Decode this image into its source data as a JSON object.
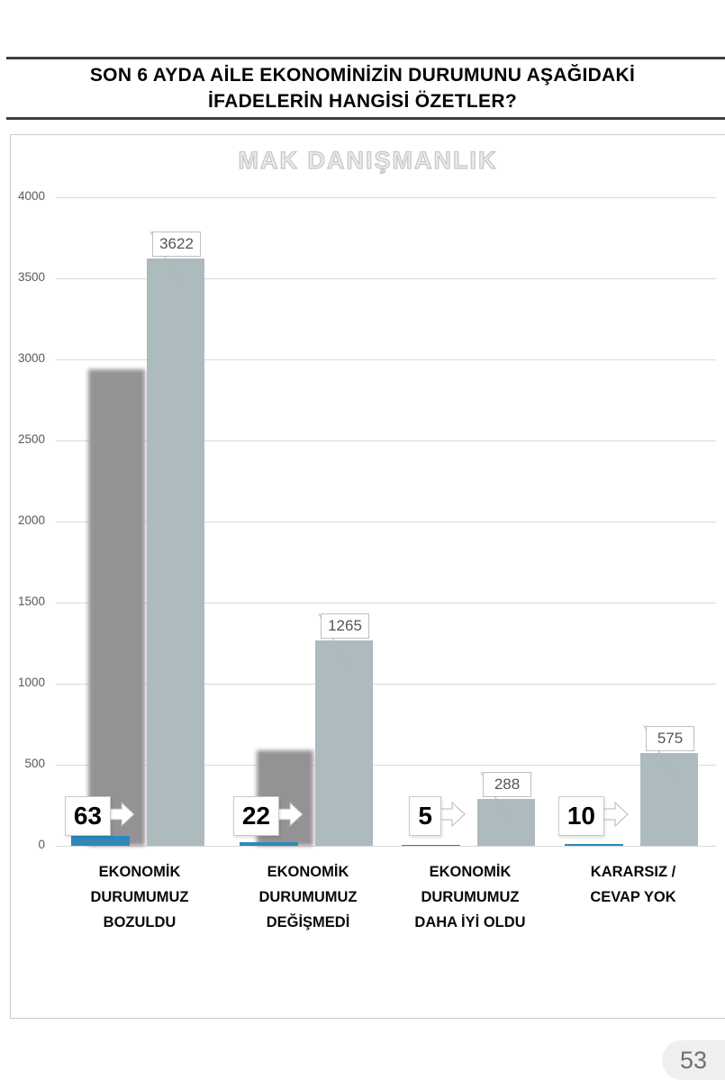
{
  "page": {
    "title_line1": "SON 6 AYDA AİLE EKONOMİNİZİN DURUMUNU AŞAĞIDAKİ",
    "title_line2": "İFADELERİN HANGİSİ ÖZETLER?",
    "page_number": "53"
  },
  "chart_data": {
    "type": "bar",
    "title": "MAK DANIŞMANLIK",
    "ylim": [
      0,
      4000
    ],
    "ytick_interval": 500,
    "grid": "horizontal",
    "legend": "none",
    "categories": [
      {
        "label": "EKONOMİK DURUMUMUZ BOZULDU",
        "lines": [
          "EKONOMİK",
          "DURUMUMUZ",
          "BOZULDU"
        ]
      },
      {
        "label": "EKONOMİK DURUMUMUZ DEĞİŞMEDİ",
        "lines": [
          "EKONOMİK",
          "DURUMUMUZ",
          "DEĞİŞMEDİ"
        ]
      },
      {
        "label": "EKONOMİK DURUMUMUZ DAHA İYİ OLDU",
        "lines": [
          "EKONOMİK",
          "DURUMUMUZ",
          "DAHA İYİ OLDU"
        ]
      },
      {
        "label": "KARARSIZ / CEVAP YOK",
        "lines": [
          "KARARSIZ /",
          "CEVAP YOK"
        ]
      }
    ],
    "series": [
      {
        "name": "unlabeled-gray",
        "color": "#959295",
        "values": [
          2940,
          590,
          null,
          null
        ],
        "estimated": true,
        "data_labels": null
      },
      {
        "name": "respondent-count",
        "color": "#adbabe",
        "values": [
          3622,
          1265,
          288,
          575
        ],
        "data_labels": [
          "3622",
          "1265",
          "288",
          "575"
        ],
        "label_style": "boxed-callout"
      },
      {
        "name": "percentage",
        "color": "#2e89b8",
        "values": [
          63,
          22,
          5,
          10
        ],
        "data_labels": [
          "63",
          "22",
          "5",
          "10"
        ],
        "label_style": "boxed-right-arrow"
      }
    ]
  }
}
